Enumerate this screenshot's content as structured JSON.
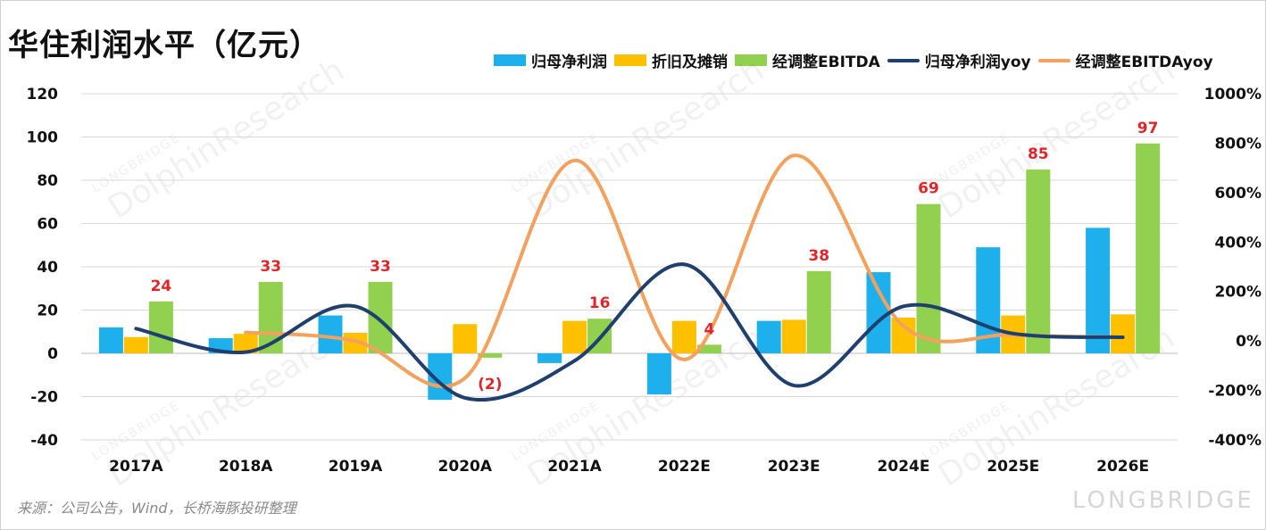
{
  "title": "华住利润水平（亿元）",
  "source": "来源：公司公告，Wind，长桥海豚投研整理",
  "watermark": {
    "brand": "LONGBRIDGE",
    "text": "DolphinResearch"
  },
  "chart_data": {
    "type": "bar+line",
    "title": "华住利润水平（亿元）",
    "categories": [
      "2017A",
      "2018A",
      "2019A",
      "2020A",
      "2021A",
      "2022E",
      "2023E",
      "2024E",
      "2025E",
      "2026E"
    ],
    "y_left": {
      "ticks": [
        -40,
        -20,
        0,
        20,
        40,
        60,
        80,
        100,
        120
      ],
      "ylim": [
        -40,
        120
      ]
    },
    "y_right": {
      "ticks": [
        "-400%",
        "-200%",
        "0%",
        "200%",
        "400%",
        "600%",
        "800%",
        "1000%"
      ],
      "ylim": [
        -400,
        1000
      ]
    },
    "grid": true,
    "legend_position": "top-right",
    "bar_series": [
      {
        "name": "归母净利润",
        "color": "#1eb0ec",
        "values": [
          12,
          7,
          17.5,
          -21.5,
          -4.5,
          -19,
          15,
          37.5,
          49,
          58
        ]
      },
      {
        "name": "折旧及摊销",
        "color": "#ffc000",
        "values": [
          7.5,
          9,
          9.5,
          13.5,
          15,
          15,
          15.5,
          16.5,
          17.5,
          18
        ]
      },
      {
        "name": "经调整EBITDA",
        "color": "#92d050",
        "values": [
          24,
          33,
          33,
          -2,
          16,
          4,
          38,
          69,
          85,
          97
        ]
      }
    ],
    "line_series": [
      {
        "name": "归母净利润yoy",
        "color": "#1f3f6e",
        "axis": "right",
        "values": [
          50,
          -45,
          140,
          -230,
          -80,
          310,
          -180,
          140,
          30,
          15
        ]
      },
      {
        "name": "经调整EBITDAyoy",
        "color": "#f4a15d",
        "axis": "right",
        "values": null,
        "values_from": 1,
        "points": [
          35,
          0,
          -150,
          730,
          -75,
          750,
          60,
          25,
          15
        ]
      }
    ],
    "data_labels": [
      "24",
      "33",
      "33",
      "(2)",
      "16",
      "4",
      "38",
      "69",
      "85",
      "97"
    ]
  }
}
